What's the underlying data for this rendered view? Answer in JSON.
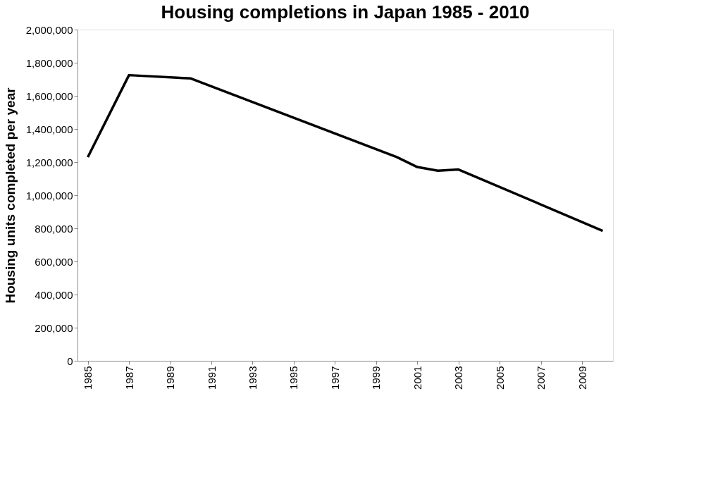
{
  "chart_data": {
    "type": "line",
    "title": "Housing completions in Japan 1985 - 2010",
    "ylabel": "Housing units completed per year",
    "x": [
      1985,
      1987,
      1990,
      2000,
      2001,
      2002,
      2003,
      2010
    ],
    "series": [
      {
        "color": "#000000",
        "values": [
          1230000,
          1725000,
          1705000,
          1230000,
          1170000,
          1148000,
          1155000,
          785000
        ]
      }
    ],
    "xlim": [
      1984.5,
      2010.5
    ],
    "xticks": [
      1985,
      1987,
      1989,
      1991,
      1993,
      1995,
      1997,
      1999,
      2001,
      2003,
      2005,
      2007,
      2009
    ],
    "ylim": [
      0,
      2000000
    ],
    "yticks": [
      0,
      {
        "value": 200000,
        "label": "200,000"
      },
      {
        "value": 400000,
        "label": "400,000"
      },
      {
        "value": 600000,
        "label": "600,000"
      },
      {
        "value": 800000,
        "label": "800,000"
      },
      {
        "value": 1000000,
        "label": "1,000,000"
      },
      {
        "value": 1200000,
        "label": "1,200,000"
      },
      {
        "value": 1400000,
        "label": "1,400,000"
      },
      {
        "value": 1600000,
        "label": "1,600,000"
      },
      {
        "value": 1800000,
        "label": "1,800,000"
      },
      {
        "value": 2000000,
        "label": "2,000,000"
      }
    ],
    "grid": false,
    "marker": "none",
    "line_style": "solid"
  }
}
